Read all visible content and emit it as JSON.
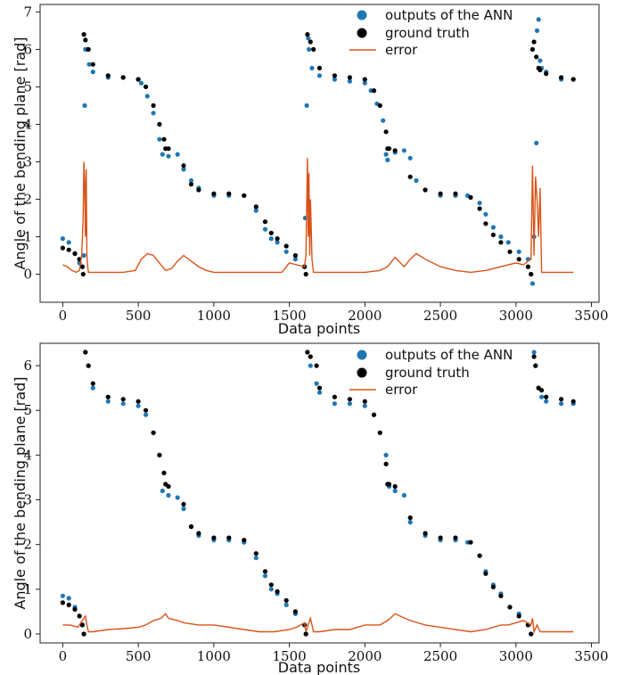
{
  "colors": {
    "ann": "#1f77b4",
    "truth": "#000000",
    "error": "#d95319"
  },
  "chart_data": [
    {
      "type": "scatter",
      "xlabel": "Data points",
      "ylabel": "Angle of the bending plane [rad]",
      "xlim": [
        -150,
        3550
      ],
      "ylim": [
        -0.75,
        7.2
      ],
      "xticks": [
        0,
        500,
        1000,
        1500,
        2000,
        2500,
        3000,
        3500
      ],
      "yticks": [
        0,
        1,
        2,
        3,
        4,
        5,
        6,
        7
      ],
      "legend": {
        "position": "top-center",
        "entries": [
          "outputs of the ANN",
          "ground truth",
          "error"
        ]
      },
      "series": [
        {
          "name": "outputs of the ANN",
          "kind": "scatter",
          "x": [
            0,
            40,
            80,
            110,
            130,
            140,
            145,
            150,
            160,
            175,
            200,
            300,
            400,
            500,
            520,
            560,
            600,
            640,
            660,
            700,
            760,
            800,
            850,
            900,
            1000,
            1100,
            1200,
            1280,
            1340,
            1380,
            1420,
            1480,
            1540,
            1600,
            1605,
            1615,
            1625,
            1630,
            1650,
            1700,
            1800,
            1900,
            2000,
            2040,
            2080,
            2120,
            2140,
            2150,
            2200,
            2260,
            2300,
            2340,
            2400,
            2500,
            2600,
            2680,
            2760,
            2800,
            2850,
            2900,
            2950,
            3020,
            3080,
            3100,
            3110,
            3120,
            3135,
            3140,
            3150,
            3160,
            3170,
            3200,
            3300,
            3380
          ],
          "y": [
            0.95,
            0.85,
            0.55,
            0.3,
            0.2,
            0.5,
            4.5,
            6.0,
            6.0,
            5.6,
            5.4,
            5.25,
            5.25,
            5.2,
            5.1,
            4.75,
            4.3,
            3.6,
            3.2,
            3.15,
            3.2,
            2.8,
            2.5,
            2.3,
            2.1,
            2.1,
            2.1,
            1.7,
            1.2,
            0.95,
            0.85,
            0.6,
            0.4,
            0.2,
            1.5,
            4.5,
            6.3,
            6.0,
            5.5,
            5.3,
            5.2,
            5.15,
            5.1,
            4.9,
            4.55,
            4.1,
            3.2,
            3.05,
            3.25,
            3.3,
            3.1,
            2.5,
            2.25,
            2.1,
            2.1,
            2.1,
            1.9,
            1.6,
            1.25,
            1.0,
            0.85,
            0.6,
            0.4,
            0.0,
            -0.25,
            1.0,
            3.5,
            6.5,
            6.8,
            5.7,
            5.5,
            5.4,
            5.2,
            5.2
          ]
        },
        {
          "name": "ground truth",
          "kind": "scatter",
          "x": [
            0,
            40,
            80,
            110,
            130,
            135,
            140,
            150,
            170,
            200,
            300,
            400,
            500,
            550,
            600,
            640,
            670,
            680,
            700,
            800,
            850,
            900,
            1000,
            1100,
            1200,
            1280,
            1340,
            1380,
            1420,
            1480,
            1540,
            1600,
            1610,
            1620,
            1640,
            1660,
            1700,
            1800,
            1900,
            2000,
            2060,
            2100,
            2140,
            2150,
            2160,
            2200,
            2300,
            2400,
            2500,
            2600,
            2700,
            2760,
            2800,
            2850,
            2900,
            2960,
            3020,
            3080,
            3100,
            3110,
            3120,
            3135,
            3150,
            3160,
            3200,
            3300,
            3380
          ],
          "y": [
            0.7,
            0.65,
            0.55,
            0.4,
            0.2,
            0.0,
            6.4,
            6.25,
            6.0,
            5.6,
            5.3,
            5.25,
            5.2,
            5.0,
            4.5,
            4.0,
            3.6,
            3.35,
            3.35,
            2.9,
            2.4,
            2.25,
            2.15,
            2.15,
            2.1,
            1.8,
            1.4,
            1.1,
            0.95,
            0.75,
            0.5,
            0.2,
            0.0,
            6.4,
            6.2,
            6.0,
            5.5,
            5.3,
            5.25,
            5.2,
            4.9,
            4.5,
            3.8,
            3.35,
            3.35,
            3.3,
            2.6,
            2.25,
            2.15,
            2.15,
            2.05,
            1.75,
            1.35,
            1.05,
            0.85,
            0.6,
            0.4,
            0.2,
            0.0,
            6.0,
            6.2,
            5.8,
            5.5,
            5.45,
            5.35,
            5.25,
            5.2
          ]
        },
        {
          "name": "error",
          "kind": "line",
          "x": [
            0,
            30,
            60,
            90,
            110,
            125,
            135,
            140,
            145,
            150,
            155,
            160,
            165,
            170,
            200,
            300,
            400,
            480,
            520,
            560,
            600,
            640,
            680,
            720,
            760,
            800,
            850,
            900,
            950,
            1000,
            1100,
            1200,
            1300,
            1400,
            1450,
            1500,
            1550,
            1600,
            1610,
            1620,
            1625,
            1630,
            1635,
            1640,
            1650,
            1660,
            1700,
            1800,
            1900,
            2000,
            2100,
            2150,
            2200,
            2260,
            2300,
            2340,
            2400,
            2500,
            2600,
            2700,
            2800,
            2900,
            3000,
            3050,
            3080,
            3100,
            3110,
            3120,
            3130,
            3140,
            3150,
            3160,
            3170,
            3200,
            3300,
            3380
          ],
          "y": [
            0.25,
            0.2,
            0.1,
            0.05,
            0.1,
            0.5,
            1.5,
            3.0,
            2.5,
            1.0,
            2.8,
            0.5,
            0.2,
            0.05,
            0.05,
            0.05,
            0.05,
            0.1,
            0.4,
            0.55,
            0.5,
            0.3,
            0.1,
            0.15,
            0.35,
            0.5,
            0.35,
            0.2,
            0.1,
            0.05,
            0.05,
            0.05,
            0.05,
            0.05,
            0.05,
            0.3,
            0.25,
            0.2,
            0.5,
            3.1,
            1.0,
            2.7,
            0.5,
            2.0,
            0.4,
            0.05,
            0.05,
            0.05,
            0.05,
            0.05,
            0.1,
            0.2,
            0.45,
            0.2,
            0.4,
            0.55,
            0.4,
            0.2,
            0.1,
            0.05,
            0.1,
            0.2,
            0.3,
            0.25,
            0.35,
            0.4,
            2.9,
            0.5,
            2.6,
            2.0,
            1.0,
            2.3,
            0.05,
            0.05,
            0.05,
            0.05
          ]
        }
      ]
    },
    {
      "type": "scatter",
      "xlabel": "Data points",
      "ylabel": "Angle of the bending plane [rad]",
      "xlim": [
        -150,
        3550
      ],
      "ylim": [
        -0.2,
        6.5
      ],
      "xticks": [
        0,
        500,
        1000,
        1500,
        2000,
        2500,
        3000,
        3500
      ],
      "yticks": [
        0,
        1,
        2,
        3,
        4,
        5,
        6
      ],
      "legend": {
        "position": "top-center",
        "entries": [
          "outputs of the ANN",
          "ground truth",
          "error"
        ]
      },
      "series": [
        {
          "name": "outputs of the ANN",
          "kind": "scatter",
          "x": [
            0,
            40,
            80,
            110,
            130,
            140,
            150,
            170,
            200,
            300,
            400,
            500,
            550,
            600,
            640,
            660,
            700,
            760,
            800,
            850,
            900,
            1000,
            1100,
            1200,
            1280,
            1340,
            1380,
            1420,
            1480,
            1540,
            1600,
            1610,
            1620,
            1640,
            1680,
            1700,
            1800,
            1900,
            2000,
            2060,
            2100,
            2140,
            2160,
            2200,
            2260,
            2300,
            2400,
            2500,
            2600,
            2680,
            2760,
            2800,
            2850,
            2900,
            2960,
            3020,
            3080,
            3100,
            3120,
            3130,
            3150,
            3170,
            3200,
            3300,
            3380
          ],
          "y": [
            0.85,
            0.8,
            0.6,
            0.4,
            0.2,
            0.0,
            6.3,
            6.0,
            5.5,
            5.2,
            5.15,
            5.1,
            4.9,
            4.5,
            4.0,
            3.2,
            3.1,
            3.05,
            2.8,
            2.4,
            2.2,
            2.1,
            2.1,
            2.05,
            1.7,
            1.3,
            1.0,
            0.9,
            0.65,
            0.45,
            0.2,
            0.0,
            6.3,
            6.0,
            5.6,
            5.4,
            5.15,
            5.15,
            5.1,
            4.9,
            4.5,
            4.0,
            3.3,
            3.2,
            3.1,
            2.5,
            2.2,
            2.1,
            2.1,
            2.05,
            1.75,
            1.4,
            1.1,
            0.9,
            0.6,
            0.45,
            0.2,
            0.0,
            6.3,
            6.0,
            5.5,
            5.3,
            5.2,
            5.15,
            5.15
          ]
        },
        {
          "name": "ground truth",
          "kind": "scatter",
          "x": [
            0,
            40,
            80,
            110,
            130,
            140,
            150,
            170,
            200,
            300,
            400,
            500,
            550,
            600,
            640,
            670,
            680,
            700,
            800,
            850,
            900,
            1000,
            1100,
            1200,
            1280,
            1340,
            1380,
            1420,
            1480,
            1540,
            1600,
            1610,
            1620,
            1640,
            1680,
            1700,
            1800,
            1900,
            2000,
            2060,
            2100,
            2140,
            2150,
            2160,
            2200,
            2300,
            2400,
            2500,
            2600,
            2700,
            2760,
            2800,
            2850,
            2900,
            2960,
            3020,
            3080,
            3100,
            3120,
            3130,
            3150,
            3170,
            3200,
            3300,
            3380
          ],
          "y": [
            0.7,
            0.65,
            0.55,
            0.4,
            0.2,
            0.0,
            6.3,
            6.0,
            5.6,
            5.3,
            5.25,
            5.2,
            5.0,
            4.5,
            4.0,
            3.6,
            3.35,
            3.3,
            2.9,
            2.4,
            2.25,
            2.15,
            2.15,
            2.1,
            1.8,
            1.4,
            1.1,
            0.95,
            0.75,
            0.5,
            0.2,
            0.0,
            6.3,
            6.2,
            6.0,
            5.5,
            5.3,
            5.25,
            5.2,
            4.9,
            4.5,
            3.8,
            3.35,
            3.35,
            3.3,
            2.6,
            2.25,
            2.15,
            2.15,
            2.05,
            1.75,
            1.35,
            1.05,
            0.85,
            0.6,
            0.4,
            0.2,
            0.0,
            6.2,
            6.0,
            5.5,
            5.45,
            5.3,
            5.25,
            5.2
          ]
        },
        {
          "name": "error",
          "kind": "line",
          "x": [
            0,
            50,
            100,
            130,
            140,
            150,
            160,
            170,
            200,
            300,
            400,
            500,
            550,
            600,
            650,
            680,
            700,
            760,
            800,
            900,
            1000,
            1100,
            1200,
            1300,
            1400,
            1500,
            1550,
            1600,
            1610,
            1620,
            1640,
            1660,
            1700,
            1800,
            1900,
            2000,
            2100,
            2150,
            2200,
            2300,
            2400,
            2500,
            2600,
            2700,
            2800,
            2900,
            2950,
            3000,
            3050,
            3100,
            3110,
            3120,
            3140,
            3160,
            3200,
            3300,
            3380
          ],
          "y": [
            0.2,
            0.2,
            0.15,
            0.3,
            0.35,
            0.4,
            0.2,
            0.05,
            0.05,
            0.1,
            0.12,
            0.15,
            0.2,
            0.3,
            0.35,
            0.45,
            0.35,
            0.3,
            0.25,
            0.2,
            0.2,
            0.15,
            0.1,
            0.05,
            0.05,
            0.1,
            0.15,
            0.25,
            0.05,
            0.15,
            0.35,
            0.05,
            0.05,
            0.1,
            0.1,
            0.2,
            0.2,
            0.3,
            0.45,
            0.3,
            0.2,
            0.15,
            0.1,
            0.05,
            0.1,
            0.2,
            0.2,
            0.25,
            0.3,
            0.2,
            0.35,
            0.05,
            0.2,
            0.05,
            0.05,
            0.05,
            0.05
          ]
        }
      ]
    }
  ]
}
